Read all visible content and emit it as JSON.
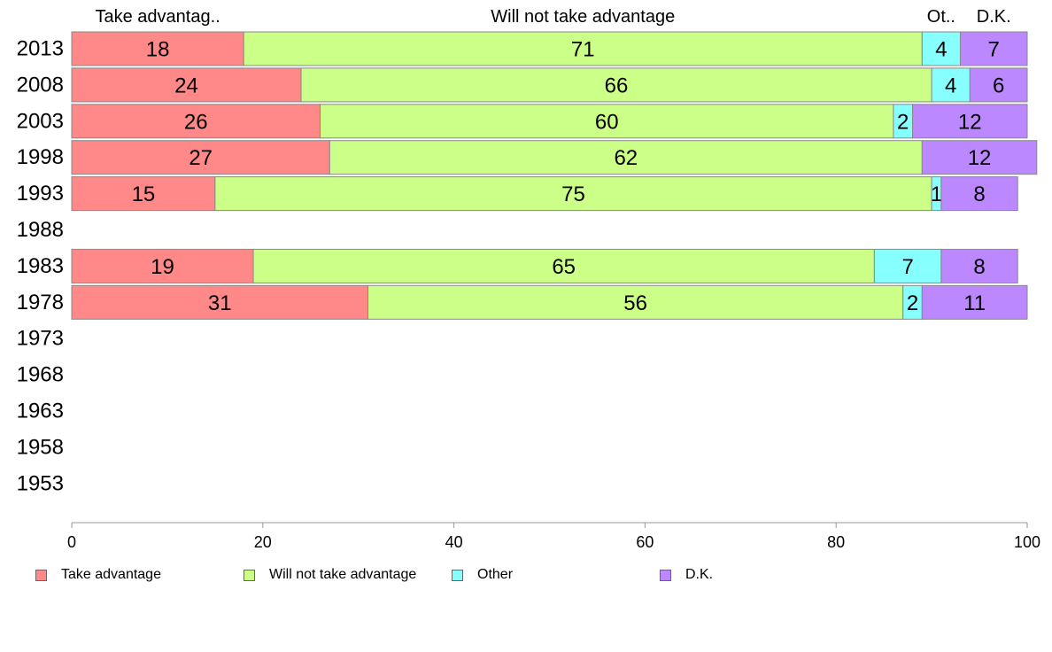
{
  "chart_data": {
    "type": "bar",
    "orientation": "horizontal",
    "stacked": true,
    "categories": [
      "2013",
      "2008",
      "2003",
      "1998",
      "1993",
      "1988",
      "1983",
      "1978",
      "1973",
      "1968",
      "1963",
      "1958",
      "1953"
    ],
    "series": [
      {
        "name": "Take advantage",
        "color": "#ff8888",
        "values": [
          18,
          24,
          26,
          27,
          15,
          null,
          19,
          31,
          null,
          null,
          null,
          null,
          null
        ]
      },
      {
        "name": "Will not take advantage",
        "color": "#ccff88",
        "values": [
          71,
          66,
          60,
          62,
          75,
          null,
          65,
          56,
          null,
          null,
          null,
          null,
          null
        ]
      },
      {
        "name": "Other",
        "color": "#88ffff",
        "values": [
          4,
          4,
          2,
          0,
          1,
          null,
          7,
          2,
          null,
          null,
          null,
          null,
          null
        ]
      },
      {
        "name": "D.K.",
        "color": "#bb88ff",
        "values": [
          7,
          6,
          12,
          12,
          8,
          null,
          8,
          11,
          null,
          null,
          null,
          null,
          null
        ]
      }
    ],
    "segment_labels": [
      [
        "18",
        "71",
        "4",
        "7"
      ],
      [
        "24",
        "66",
        "4",
        "6"
      ],
      [
        "26",
        "60",
        "2",
        "12"
      ],
      [
        "27",
        "62",
        "",
        "12"
      ],
      [
        "15",
        "75",
        "1",
        "8"
      ],
      [
        "",
        "",
        "",
        ""
      ],
      [
        "19",
        "65",
        "7",
        "8"
      ],
      [
        "31",
        "56",
        "2",
        "11"
      ],
      [
        "",
        "",
        "",
        ""
      ],
      [
        "",
        "",
        "",
        ""
      ],
      [
        "",
        "",
        "",
        ""
      ],
      [
        "",
        "",
        "",
        ""
      ],
      [
        "",
        "",
        "",
        ""
      ]
    ],
    "top_labels": [
      "Take advantag..",
      "Will not take advantage",
      "Ot..",
      "D.K."
    ],
    "xlim": [
      0,
      100
    ],
    "xticks": [
      "0",
      "20",
      "40",
      "60",
      "80",
      "100"
    ],
    "grid": false,
    "legend_position": "bottom"
  }
}
